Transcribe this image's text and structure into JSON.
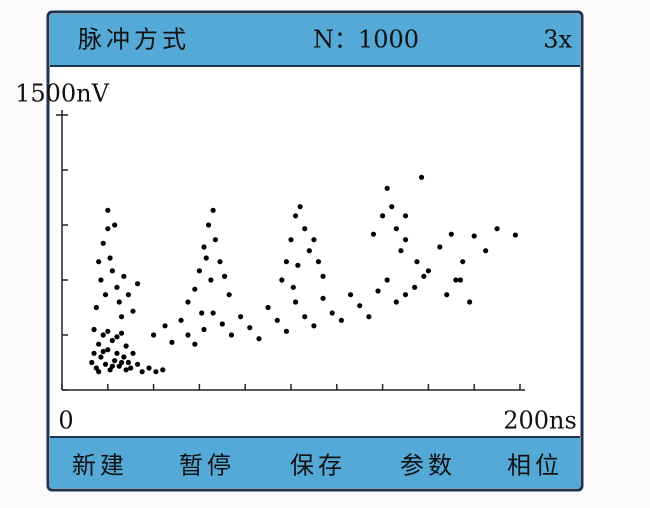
{
  "header": {
    "mode": "脉冲方式",
    "count": "N：1000",
    "zoom": "3x"
  },
  "chart_data": {
    "type": "scatter",
    "color": "#000000",
    "x": [
      13,
      14,
      15,
      16,
      17,
      18,
      19,
      20,
      21,
      22,
      23,
      24,
      25,
      26,
      27,
      28,
      29,
      30,
      14,
      16,
      18,
      20,
      22,
      24,
      26,
      28,
      31,
      33,
      35,
      38,
      41,
      44,
      15,
      17,
      19,
      21,
      18,
      20,
      22,
      24,
      16,
      23,
      25,
      27,
      26,
      29,
      31,
      33,
      20,
      60,
      62,
      64,
      66,
      63,
      67,
      65,
      69,
      58,
      71,
      55,
      73,
      61,
      40,
      45,
      48,
      52,
      55,
      58,
      62,
      66,
      70,
      74,
      78,
      82,
      86,
      90,
      94,
      98,
      102,
      106,
      110,
      114,
      118,
      122,
      126,
      130,
      134,
      138,
      142,
      146,
      150,
      154,
      158,
      98,
      100,
      102,
      104,
      106,
      108,
      103,
      110,
      112,
      96,
      114,
      101,
      136,
      140,
      142,
      144,
      146,
      150,
      148,
      155,
      160,
      165,
      170,
      175,
      180,
      185,
      190,
      172,
      168,
      178,
      198,
      157,
      174,
      150
    ],
    "values": [
      150,
      200,
      120,
      250,
      180,
      300,
      140,
      220,
      110,
      270,
      160,
      200,
      130,
      310,
      180,
      240,
      150,
      120,
      330,
      100,
      210,
      320,
      130,
      290,
      150,
      110,
      200,
      140,
      100,
      120,
      100,
      110,
      450,
      600,
      520,
      720,
      800,
      880,
      650,
      560,
      700,
      900,
      480,
      620,
      400,
      520,
      430,
      580,
      980,
      650,
      780,
      900,
      980,
      720,
      820,
      600,
      700,
      550,
      620,
      480,
      520,
      420,
      300,
      350,
      260,
      380,
      300,
      250,
      330,
      420,
      360,
      300,
      400,
      340,
      280,
      450,
      380,
      320,
      480,
      400,
      350,
      500,
      420,
      380,
      520,
      460,
      400,
      540,
      600,
      480,
      520,
      560,
      620,
      700,
      820,
      950,
      1000,
      880,
      760,
      680,
      820,
      700,
      600,
      620,
      560,
      850,
      950,
      1100,
      1000,
      880,
      820,
      760,
      700,
      650,
      780,
      850,
      700,
      840,
      760,
      880,
      600,
      520,
      480,
      845,
      1160,
      600,
      950
    ],
    "xlim": [
      0,
      200
    ],
    "ylim": [
      0,
      1500
    ],
    "xticks": [
      0,
      {
        "value": 200,
        "label": "200ns"
      }
    ],
    "xminorticks": [
      20,
      40,
      60,
      80,
      100,
      120,
      140,
      160,
      180
    ],
    "yticks": [
      {
        "value": 1500,
        "label": "1500nV"
      }
    ],
    "yminorticks": [
      0,
      300,
      600,
      900,
      1200
    ]
  },
  "menu": [
    "新建",
    "暂停",
    "保存",
    "参数",
    "相位"
  ]
}
